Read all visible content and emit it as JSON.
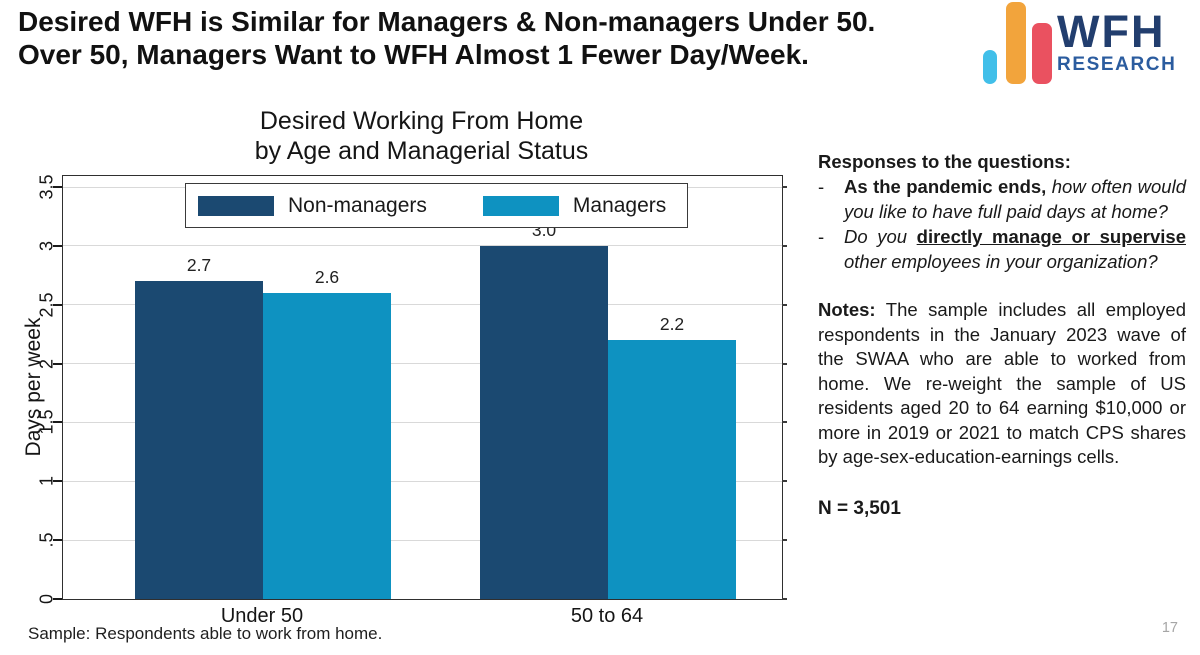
{
  "slide": {
    "title_line1": "Desired WFH is Similar for Managers & Non-managers Under 50.",
    "title_line2": "Over 50, Managers Want to WFH Almost 1 Fewer Day/Week.",
    "sample_note": "Sample: Respondents able to work from home.",
    "page_number": "17"
  },
  "logo": {
    "brand_top": "WFH",
    "brand_bottom": "RESEARCH",
    "bar_colors": {
      "blue": "#41bfe9",
      "orange": "#f2a43c",
      "red": "#ea5160"
    },
    "text_color": "#223e6e",
    "subtext_color": "#2b5c9f"
  },
  "chart_data": {
    "type": "bar",
    "title": "Desired Working From Home by Age and Managerial Status",
    "title_lines": [
      "Desired Working From Home",
      "by Age and Managerial Status"
    ],
    "xlabel": "",
    "ylabel": "Days per week",
    "ylim": [
      0,
      3.5
    ],
    "ytick_interval": 0.5,
    "yticks": [
      "0",
      ".5",
      "1",
      "1.5",
      "2",
      "2.5",
      "3",
      "3.5"
    ],
    "grid": true,
    "legend_position": "top-inside",
    "categories": [
      "Under 50",
      "50 to 64"
    ],
    "series": [
      {
        "name": "Non-managers",
        "color": "#1b4971",
        "values": [
          2.7,
          3.0
        ],
        "value_labels": [
          "2.7",
          "3.0"
        ]
      },
      {
        "name": "Managers",
        "color": "#0e92c1",
        "values": [
          2.6,
          2.2
        ],
        "value_labels": [
          "2.6",
          "2.2"
        ]
      }
    ]
  },
  "side_panel": {
    "heading": "Responses to the questions:",
    "bullets": [
      {
        "marker": "-",
        "segments": [
          {
            "text": "As the pandemic ends,",
            "style": "bold"
          },
          {
            "text": " how often would you like to have full paid days at home?",
            "style": "italic"
          }
        ]
      },
      {
        "marker": "-",
        "segments": [
          {
            "text": "Do you ",
            "style": "italic"
          },
          {
            "text": "directly manage or supervise ",
            "style": "bold-underline"
          },
          {
            "text": "other employees in your organization?",
            "style": "italic"
          }
        ]
      }
    ],
    "notes_label": "Notes:",
    "notes_text": "The sample includes all employed respondents in the January 2023 wave of the SWAA who are able to worked from home. We re-weight the sample of US residents aged 20 to 64 earning $10,000 or more in 2019 or 2021 to match CPS shares by age-sex-education-earnings cells.",
    "sample_size": "N = 3,501"
  }
}
